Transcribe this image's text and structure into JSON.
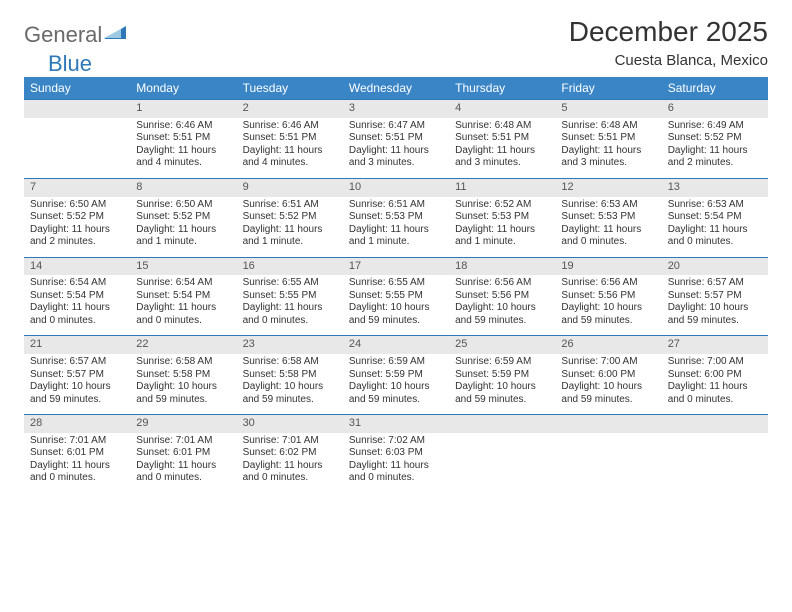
{
  "brand": {
    "name1": "General",
    "name2": "Blue"
  },
  "title": "December 2025",
  "subtitle": "Cuesta Blanca, Mexico",
  "colors": {
    "header_bg": "#3a85c6",
    "header_text": "#ffffff",
    "rule": "#2f78b7",
    "daynum_bg": "#e8e8e8",
    "text": "#333333"
  },
  "weekdays": [
    "Sunday",
    "Monday",
    "Tuesday",
    "Wednesday",
    "Thursday",
    "Friday",
    "Saturday"
  ],
  "weeks": [
    [
      {
        "n": "",
        "lines": [
          "",
          "",
          "",
          ""
        ]
      },
      {
        "n": "1",
        "lines": [
          "Sunrise: 6:46 AM",
          "Sunset: 5:51 PM",
          "Daylight: 11 hours",
          "and 4 minutes."
        ]
      },
      {
        "n": "2",
        "lines": [
          "Sunrise: 6:46 AM",
          "Sunset: 5:51 PM",
          "Daylight: 11 hours",
          "and 4 minutes."
        ]
      },
      {
        "n": "3",
        "lines": [
          "Sunrise: 6:47 AM",
          "Sunset: 5:51 PM",
          "Daylight: 11 hours",
          "and 3 minutes."
        ]
      },
      {
        "n": "4",
        "lines": [
          "Sunrise: 6:48 AM",
          "Sunset: 5:51 PM",
          "Daylight: 11 hours",
          "and 3 minutes."
        ]
      },
      {
        "n": "5",
        "lines": [
          "Sunrise: 6:48 AM",
          "Sunset: 5:51 PM",
          "Daylight: 11 hours",
          "and 3 minutes."
        ]
      },
      {
        "n": "6",
        "lines": [
          "Sunrise: 6:49 AM",
          "Sunset: 5:52 PM",
          "Daylight: 11 hours",
          "and 2 minutes."
        ]
      }
    ],
    [
      {
        "n": "7",
        "lines": [
          "Sunrise: 6:50 AM",
          "Sunset: 5:52 PM",
          "Daylight: 11 hours",
          "and 2 minutes."
        ]
      },
      {
        "n": "8",
        "lines": [
          "Sunrise: 6:50 AM",
          "Sunset: 5:52 PM",
          "Daylight: 11 hours",
          "and 1 minute."
        ]
      },
      {
        "n": "9",
        "lines": [
          "Sunrise: 6:51 AM",
          "Sunset: 5:52 PM",
          "Daylight: 11 hours",
          "and 1 minute."
        ]
      },
      {
        "n": "10",
        "lines": [
          "Sunrise: 6:51 AM",
          "Sunset: 5:53 PM",
          "Daylight: 11 hours",
          "and 1 minute."
        ]
      },
      {
        "n": "11",
        "lines": [
          "Sunrise: 6:52 AM",
          "Sunset: 5:53 PM",
          "Daylight: 11 hours",
          "and 1 minute."
        ]
      },
      {
        "n": "12",
        "lines": [
          "Sunrise: 6:53 AM",
          "Sunset: 5:53 PM",
          "Daylight: 11 hours",
          "and 0 minutes."
        ]
      },
      {
        "n": "13",
        "lines": [
          "Sunrise: 6:53 AM",
          "Sunset: 5:54 PM",
          "Daylight: 11 hours",
          "and 0 minutes."
        ]
      }
    ],
    [
      {
        "n": "14",
        "lines": [
          "Sunrise: 6:54 AM",
          "Sunset: 5:54 PM",
          "Daylight: 11 hours",
          "and 0 minutes."
        ]
      },
      {
        "n": "15",
        "lines": [
          "Sunrise: 6:54 AM",
          "Sunset: 5:54 PM",
          "Daylight: 11 hours",
          "and 0 minutes."
        ]
      },
      {
        "n": "16",
        "lines": [
          "Sunrise: 6:55 AM",
          "Sunset: 5:55 PM",
          "Daylight: 11 hours",
          "and 0 minutes."
        ]
      },
      {
        "n": "17",
        "lines": [
          "Sunrise: 6:55 AM",
          "Sunset: 5:55 PM",
          "Daylight: 10 hours",
          "and 59 minutes."
        ]
      },
      {
        "n": "18",
        "lines": [
          "Sunrise: 6:56 AM",
          "Sunset: 5:56 PM",
          "Daylight: 10 hours",
          "and 59 minutes."
        ]
      },
      {
        "n": "19",
        "lines": [
          "Sunrise: 6:56 AM",
          "Sunset: 5:56 PM",
          "Daylight: 10 hours",
          "and 59 minutes."
        ]
      },
      {
        "n": "20",
        "lines": [
          "Sunrise: 6:57 AM",
          "Sunset: 5:57 PM",
          "Daylight: 10 hours",
          "and 59 minutes."
        ]
      }
    ],
    [
      {
        "n": "21",
        "lines": [
          "Sunrise: 6:57 AM",
          "Sunset: 5:57 PM",
          "Daylight: 10 hours",
          "and 59 minutes."
        ]
      },
      {
        "n": "22",
        "lines": [
          "Sunrise: 6:58 AM",
          "Sunset: 5:58 PM",
          "Daylight: 10 hours",
          "and 59 minutes."
        ]
      },
      {
        "n": "23",
        "lines": [
          "Sunrise: 6:58 AM",
          "Sunset: 5:58 PM",
          "Daylight: 10 hours",
          "and 59 minutes."
        ]
      },
      {
        "n": "24",
        "lines": [
          "Sunrise: 6:59 AM",
          "Sunset: 5:59 PM",
          "Daylight: 10 hours",
          "and 59 minutes."
        ]
      },
      {
        "n": "25",
        "lines": [
          "Sunrise: 6:59 AM",
          "Sunset: 5:59 PM",
          "Daylight: 10 hours",
          "and 59 minutes."
        ]
      },
      {
        "n": "26",
        "lines": [
          "Sunrise: 7:00 AM",
          "Sunset: 6:00 PM",
          "Daylight: 10 hours",
          "and 59 minutes."
        ]
      },
      {
        "n": "27",
        "lines": [
          "Sunrise: 7:00 AM",
          "Sunset: 6:00 PM",
          "Daylight: 11 hours",
          "and 0 minutes."
        ]
      }
    ],
    [
      {
        "n": "28",
        "lines": [
          "Sunrise: 7:01 AM",
          "Sunset: 6:01 PM",
          "Daylight: 11 hours",
          "and 0 minutes."
        ]
      },
      {
        "n": "29",
        "lines": [
          "Sunrise: 7:01 AM",
          "Sunset: 6:01 PM",
          "Daylight: 11 hours",
          "and 0 minutes."
        ]
      },
      {
        "n": "30",
        "lines": [
          "Sunrise: 7:01 AM",
          "Sunset: 6:02 PM",
          "Daylight: 11 hours",
          "and 0 minutes."
        ]
      },
      {
        "n": "31",
        "lines": [
          "Sunrise: 7:02 AM",
          "Sunset: 6:03 PM",
          "Daylight: 11 hours",
          "and 0 minutes."
        ]
      },
      {
        "n": "",
        "lines": [
          "",
          "",
          "",
          ""
        ]
      },
      {
        "n": "",
        "lines": [
          "",
          "",
          "",
          ""
        ]
      },
      {
        "n": "",
        "lines": [
          "",
          "",
          "",
          ""
        ]
      }
    ]
  ]
}
